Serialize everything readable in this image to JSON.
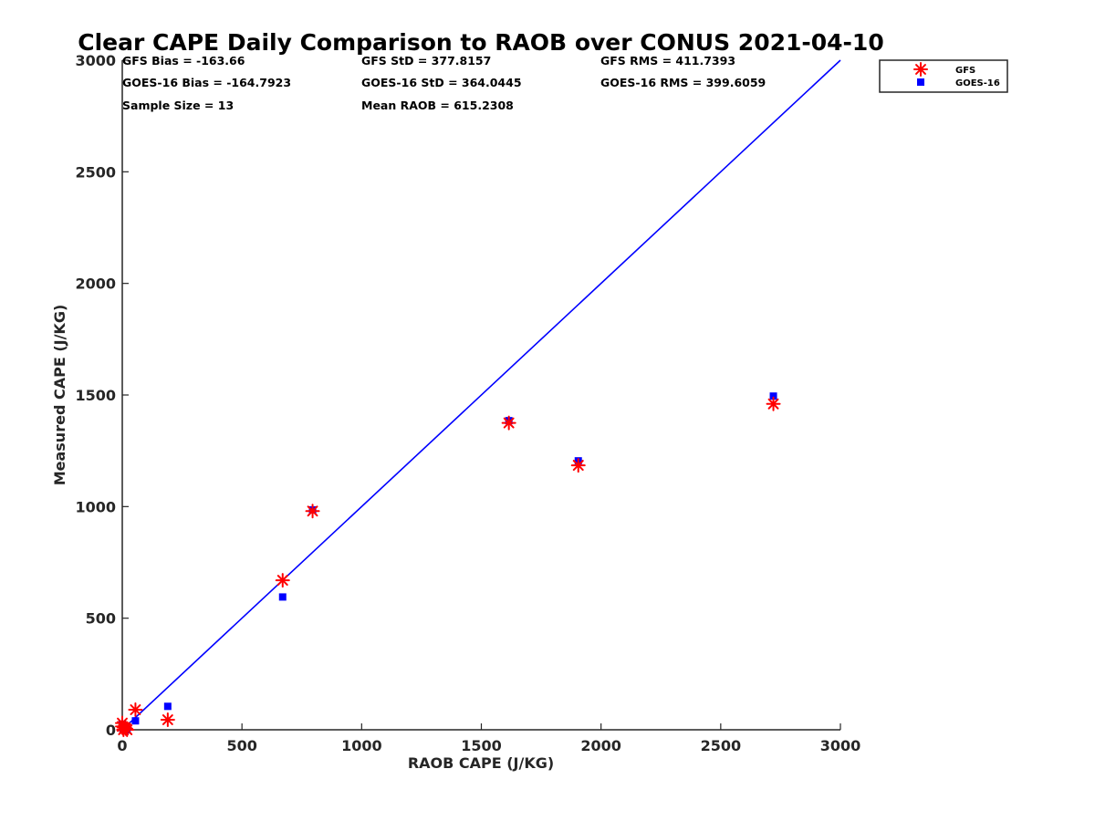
{
  "chart_data": {
    "type": "scatter",
    "title": "Clear CAPE Daily Comparison to RAOB over CONUS 2021-04-10",
    "xlabel": "RAOB CAPE (J/KG)",
    "ylabel": "Measured CAPE (J/KG)",
    "xlim": [
      0,
      3000
    ],
    "ylim": [
      0,
      3000
    ],
    "xticks": [
      0,
      500,
      1000,
      1500,
      2000,
      2500,
      3000
    ],
    "yticks": [
      0,
      500,
      1000,
      1500,
      2000,
      2500,
      3000
    ],
    "grid": false,
    "legend_position": "top-right",
    "reference_line": {
      "x": [
        0,
        3000
      ],
      "y": [
        0,
        3000
      ],
      "color": "#0000ff"
    },
    "series": [
      {
        "name": "GFS",
        "marker": "asterisk",
        "color": "#ff0000",
        "x": [
          0,
          5,
          10,
          15,
          20,
          55,
          190,
          670,
          795,
          1615,
          1905,
          2720,
          0
        ],
        "y": [
          30,
          0,
          10,
          5,
          0,
          90,
          45,
          670,
          980,
          1375,
          1185,
          1460,
          15
        ]
      },
      {
        "name": "GOES-16",
        "marker": "square",
        "color": "#0000ff",
        "x": [
          0,
          5,
          10,
          15,
          20,
          55,
          190,
          670,
          795,
          1615,
          1905,
          2720,
          0
        ],
        "y": [
          25,
          10,
          15,
          5,
          0,
          40,
          105,
          595,
          985,
          1385,
          1205,
          1495,
          10
        ]
      }
    ],
    "stats": [
      [
        "GFS Bias = -163.66",
        "GFS StD = 377.8157",
        "GFS RMS = 411.7393"
      ],
      [
        "GOES-16 Bias = -164.7923",
        "GOES-16 StD = 364.0445",
        "GOES-16 RMS = 399.6059"
      ],
      [
        "Sample Size = 13",
        "Mean RAOB = 615.2308"
      ]
    ]
  }
}
